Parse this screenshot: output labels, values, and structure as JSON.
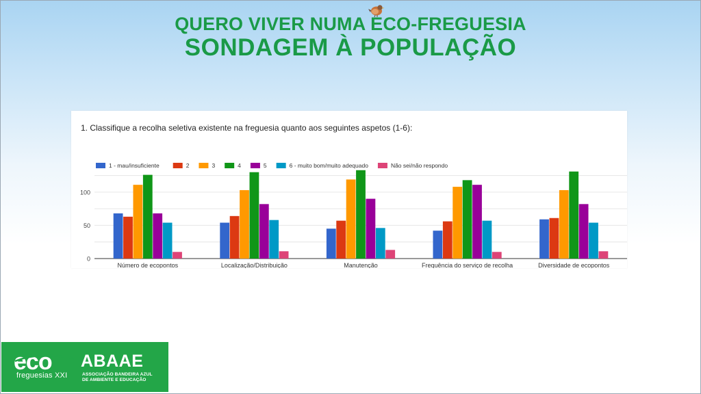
{
  "header": {
    "title_line1": "QUERO VIVER NUMA ECO-FREGUESIA",
    "title_line2": "SONDAGEM À POPULAÇÃO",
    "decoration_icon": "bird-icon"
  },
  "question": "1. Classifique a recolha seletiva existente na freguesia quanto aos seguintes aspetos (1-6):",
  "chart_data": {
    "type": "bar",
    "title": "",
    "xlabel": "",
    "ylabel": "",
    "categories": [
      "Número de ecopontos",
      "Localização/Distribuição",
      "Manutenção",
      "Frequência do serviço de recolha",
      "Diversidade de ecopontos"
    ],
    "y_ticks": [
      "0",
      "50",
      "100"
    ],
    "ylim": [
      0,
      140
    ],
    "grid": true,
    "legend_position": "top",
    "series": [
      {
        "name": "1 - mau/insuficiente",
        "color": "#3366cc",
        "values": [
          68,
          54,
          45,
          42,
          59
        ]
      },
      {
        "name": "2",
        "color": "#dc3912",
        "values": [
          63,
          64,
          57,
          56,
          61
        ]
      },
      {
        "name": "3",
        "color": "#ff9900",
        "values": [
          111,
          103,
          119,
          108,
          103
        ]
      },
      {
        "name": "4",
        "color": "#109618",
        "values": [
          126,
          130,
          133,
          118,
          131
        ]
      },
      {
        "name": "5",
        "color": "#990099",
        "values": [
          68,
          82,
          90,
          111,
          82
        ]
      },
      {
        "name": "6 - muito bom/muito adequado",
        "color": "#0099c6",
        "values": [
          54,
          58,
          46,
          57,
          54
        ]
      },
      {
        "name": "Não sei/não respondo",
        "color": "#dd4477",
        "values": [
          10,
          11,
          13,
          10,
          11
        ]
      }
    ]
  },
  "logos": {
    "eco_text": "freguesias XXI",
    "abaae_text": "ABAAE",
    "abaae_sub_line1": "ASSOCIAÇÃO BANDEIRA AZUL",
    "abaae_sub_line2": "DE AMBIENTE E EDUCAÇÃO",
    "eco_wordmark": "eco"
  }
}
